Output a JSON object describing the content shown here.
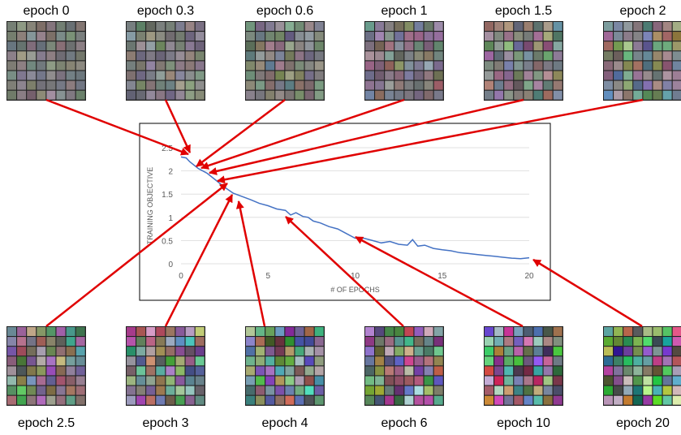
{
  "chart_data": {
    "type": "line",
    "x_label": "# OF EPOCHS",
    "y_label": "TRAINING OBJECTIVE",
    "x": [
      0,
      0.3,
      0.5,
      1,
      1.5,
      2,
      2.5,
      3,
      3.5,
      4,
      4.5,
      5,
      5.5,
      6,
      6.3,
      6.6,
      7,
      7.3,
      7.6,
      8,
      8.5,
      9,
      9.5,
      10,
      10.5,
      11,
      11.5,
      12,
      12.5,
      13,
      13.3,
      13.6,
      14,
      14.5,
      15,
      15.5,
      16,
      16.5,
      17,
      17.5,
      18,
      18.5,
      19,
      19.5,
      20
    ],
    "values": [
      2.3,
      2.28,
      2.2,
      2.05,
      1.95,
      1.8,
      1.65,
      1.52,
      1.45,
      1.38,
      1.3,
      1.25,
      1.18,
      1.15,
      1.05,
      1.1,
      1.02,
      1.0,
      0.92,
      0.88,
      0.8,
      0.75,
      0.65,
      0.55,
      0.55,
      0.5,
      0.45,
      0.48,
      0.42,
      0.4,
      0.52,
      0.38,
      0.4,
      0.33,
      0.3,
      0.28,
      0.24,
      0.22,
      0.2,
      0.18,
      0.16,
      0.14,
      0.12,
      0.11,
      0.13
    ],
    "color": "#4472c4",
    "xlim": [
      0,
      20
    ],
    "ylim": [
      0,
      2.5
    ],
    "xticks": [
      0,
      5,
      10,
      15,
      20
    ],
    "yticks": [
      0,
      0.5,
      1,
      1.5,
      2,
      2.5
    ],
    "grid": true,
    "annotations": [
      "epoch 0",
      "epoch 0.3",
      "epoch 0.6",
      "epoch 1",
      "epoch 1.5",
      "epoch 2",
      "epoch 2.5",
      "epoch 3",
      "epoch 4",
      "epoch 6",
      "epoch 10",
      "epoch 20"
    ]
  }
}
